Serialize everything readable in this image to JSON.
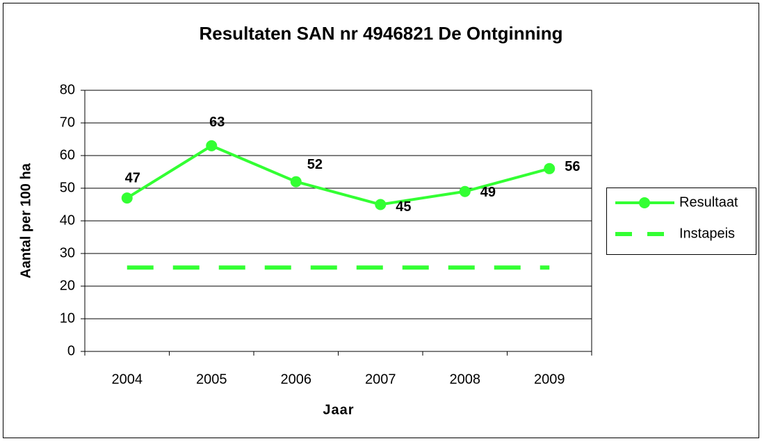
{
  "chart_data": {
    "type": "line",
    "title": "Resultaten SAN nr 4946821 De Ontginning",
    "x_label": "Jaar",
    "y_label": "Aantal per 100 ha",
    "categories": [
      "2004",
      "2005",
      "2006",
      "2007",
      "2008",
      "2009"
    ],
    "series": [
      {
        "name": "Resultaat",
        "color": "#33ff33",
        "values": [
          47,
          63,
          52,
          45,
          49,
          56
        ],
        "markers": true,
        "data_labels": true
      },
      {
        "name": "Instapeis",
        "color": "#33ff33",
        "values": [
          25.7,
          25.7,
          25.7,
          25.7,
          25.7,
          25.7
        ],
        "dashed": true
      }
    ],
    "ylim": [
      0,
      80
    ],
    "yticks": [
      0,
      10,
      20,
      30,
      40,
      50,
      60,
      70,
      80
    ],
    "grid": true,
    "legend": "right"
  }
}
